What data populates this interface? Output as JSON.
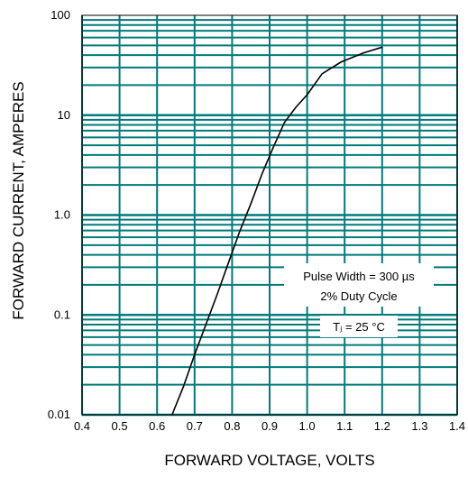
{
  "chart_data": {
    "type": "line",
    "xlabel": "FORWARD VOLTAGE, VOLTS",
    "ylabel": "FORWARD CURRENT, AMPERES",
    "xlim": [
      0.4,
      1.4
    ],
    "ylim": [
      0.01,
      100
    ],
    "yscale": "log",
    "grid": true,
    "x_ticks": [
      "0.4",
      "0.5",
      "0.6",
      "0.7",
      "0.8",
      "0.9",
      "1.0",
      "1.1",
      "1.2",
      "1.3",
      "1.4"
    ],
    "y_ticks": [
      {
        "value": 100,
        "label": "100"
      },
      {
        "value": 10,
        "label": "10"
      },
      {
        "value": 1,
        "label": "1.0"
      },
      {
        "value": 0.1,
        "label": "0.1"
      },
      {
        "value": 0.01,
        "label": "0.01"
      }
    ],
    "series": [
      {
        "x": [
          0.64,
          0.67,
          0.7,
          0.73,
          0.76,
          0.79,
          0.82,
          0.85,
          0.88,
          0.91,
          0.94,
          0.97,
          1.0,
          1.04,
          1.09,
          1.15,
          1.2
        ],
        "y": [
          0.01,
          0.019,
          0.04,
          0.08,
          0.16,
          0.33,
          0.68,
          1.3,
          2.6,
          4.8,
          8.5,
          12.0,
          16.0,
          26.0,
          34.0,
          42.0,
          48.0
        ]
      }
    ],
    "annotations": {
      "line1": "Pulse Width = 300 µs",
      "line2": "2% Duty Cycle",
      "line3": "Tⱼ = 25 °C"
    }
  }
}
